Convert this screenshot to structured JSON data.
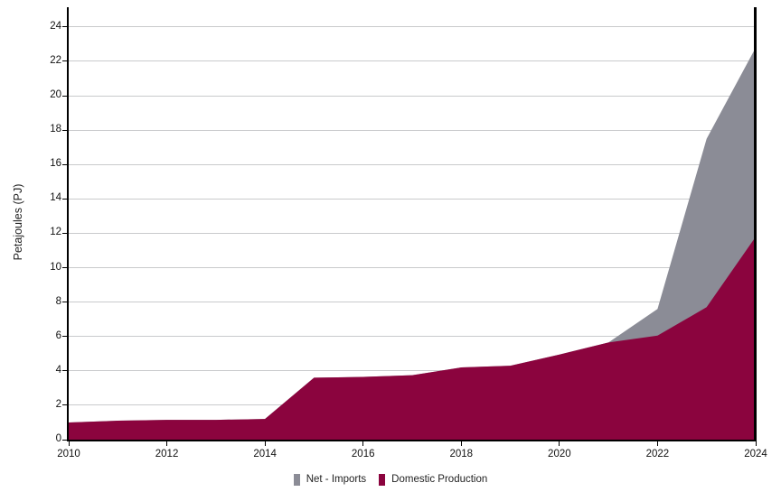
{
  "axes": {
    "y_title": "Petajoules (PJ)"
  },
  "legend": {
    "items": [
      {
        "label": "Net - Imports",
        "color": "#8B8C96"
      },
      {
        "label": "Domestic Production",
        "color": "#8B043E"
      }
    ]
  },
  "colors": {
    "net_imports": "#8B8C96",
    "domestic_production": "#8B043E",
    "gridline": "#c9cacc",
    "axis": "#000000"
  },
  "chart_data": {
    "type": "area",
    "stacked": true,
    "title": "",
    "xlabel": "",
    "ylabel": "Petajoules (PJ)",
    "x": [
      2010,
      2011,
      2012,
      2013,
      2014,
      2015,
      2016,
      2017,
      2018,
      2019,
      2020,
      2021,
      2022,
      2023,
      2024
    ],
    "series": [
      {
        "name": "Net - Imports",
        "color": "#8B8C96",
        "values": [
          0,
          0,
          0,
          0,
          0,
          0,
          0,
          0,
          0,
          0,
          0,
          0,
          1.55,
          9.8,
          11.0
        ]
      },
      {
        "name": "Domestic Production",
        "color": "#8B043E",
        "values": [
          1.0,
          1.1,
          1.15,
          1.15,
          1.2,
          3.6,
          3.65,
          3.75,
          4.2,
          4.3,
          4.95,
          5.65,
          6.05,
          7.7,
          11.8
        ]
      }
    ],
    "xlim": [
      2010,
      2024
    ],
    "ylim": [
      0,
      25.15
    ],
    "x_ticks": [
      2010,
      2012,
      2014,
      2016,
      2018,
      2020,
      2022,
      2024
    ],
    "y_ticks": [
      0,
      2,
      4,
      6,
      8,
      10,
      12,
      14,
      16,
      18,
      20,
      22,
      24
    ],
    "grid": "horizontal",
    "legend_position": "bottom-center",
    "vertical_marker_x": 2024
  }
}
